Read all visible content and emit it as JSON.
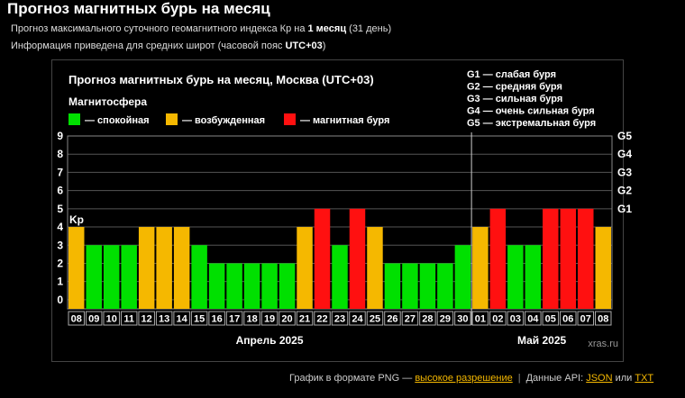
{
  "page": {
    "title": "Прогноз магнитных бурь на месяц",
    "line1_pre": "Прогноз максимального суточного геомагнитного индекса Кр на ",
    "line1_bold": "1 месяц",
    "line1_post": " (31 день)",
    "line2_pre": "Информация приведена для средних широт (часовой пояс ",
    "line2_bold": "UTC+03",
    "line2_post": ")"
  },
  "chart_data": {
    "type": "bar",
    "title": "Прогноз магнитных бурь на месяц, Москва (UTC+03)",
    "ylabel": "Kp",
    "ylim": [
      0,
      9
    ],
    "yticks": [
      "0",
      "1",
      "2",
      "3",
      "4",
      "5",
      "6",
      "7",
      "8",
      "9"
    ],
    "right_ticks": [
      {
        "level": 5,
        "label": "G1"
      },
      {
        "level": 6,
        "label": "G2"
      },
      {
        "level": 7,
        "label": "G3"
      },
      {
        "level": 8,
        "label": "G4"
      },
      {
        "level": 9,
        "label": "G5"
      }
    ],
    "legend_title": "Магнитосфера",
    "legend": [
      {
        "label": "— спокойная",
        "color": "#00e000"
      },
      {
        "label": "— возбужденная",
        "color": "#f5b800"
      },
      {
        "label": "— магнитная буря",
        "color": "#ff1010"
      }
    ],
    "g_legend": [
      "G1 — слабая буря",
      "G2 — средняя буря",
      "G3 — сильная буря",
      "G4 — очень сильная буря",
      "G5 — экстремальная буря"
    ],
    "categories": [
      "08",
      "09",
      "10",
      "11",
      "12",
      "13",
      "14",
      "15",
      "16",
      "17",
      "18",
      "19",
      "20",
      "21",
      "22",
      "23",
      "24",
      "25",
      "26",
      "27",
      "28",
      "29",
      "30",
      "01",
      "02",
      "03",
      "04",
      "05",
      "06",
      "07",
      "08"
    ],
    "values": [
      4,
      3,
      3,
      3,
      4,
      4,
      4,
      3,
      2,
      2,
      2,
      2,
      2,
      4,
      5,
      3,
      5,
      4,
      2,
      2,
      2,
      2,
      3,
      4,
      5,
      3,
      3,
      5,
      5,
      5,
      4
    ],
    "months": [
      {
        "label": "Апрель 2025"
      },
      {
        "label": "Май 2025"
      }
    ],
    "month_split_index": 23,
    "watermark": "xras.ru"
  },
  "footer": {
    "prefix": "График в формате PNG — ",
    "link_hires": "высокое разрешение",
    "sep": "|",
    "api_prefix": "Данные API: ",
    "link_json": "JSON",
    "or": " или ",
    "link_txt": "TXT"
  }
}
